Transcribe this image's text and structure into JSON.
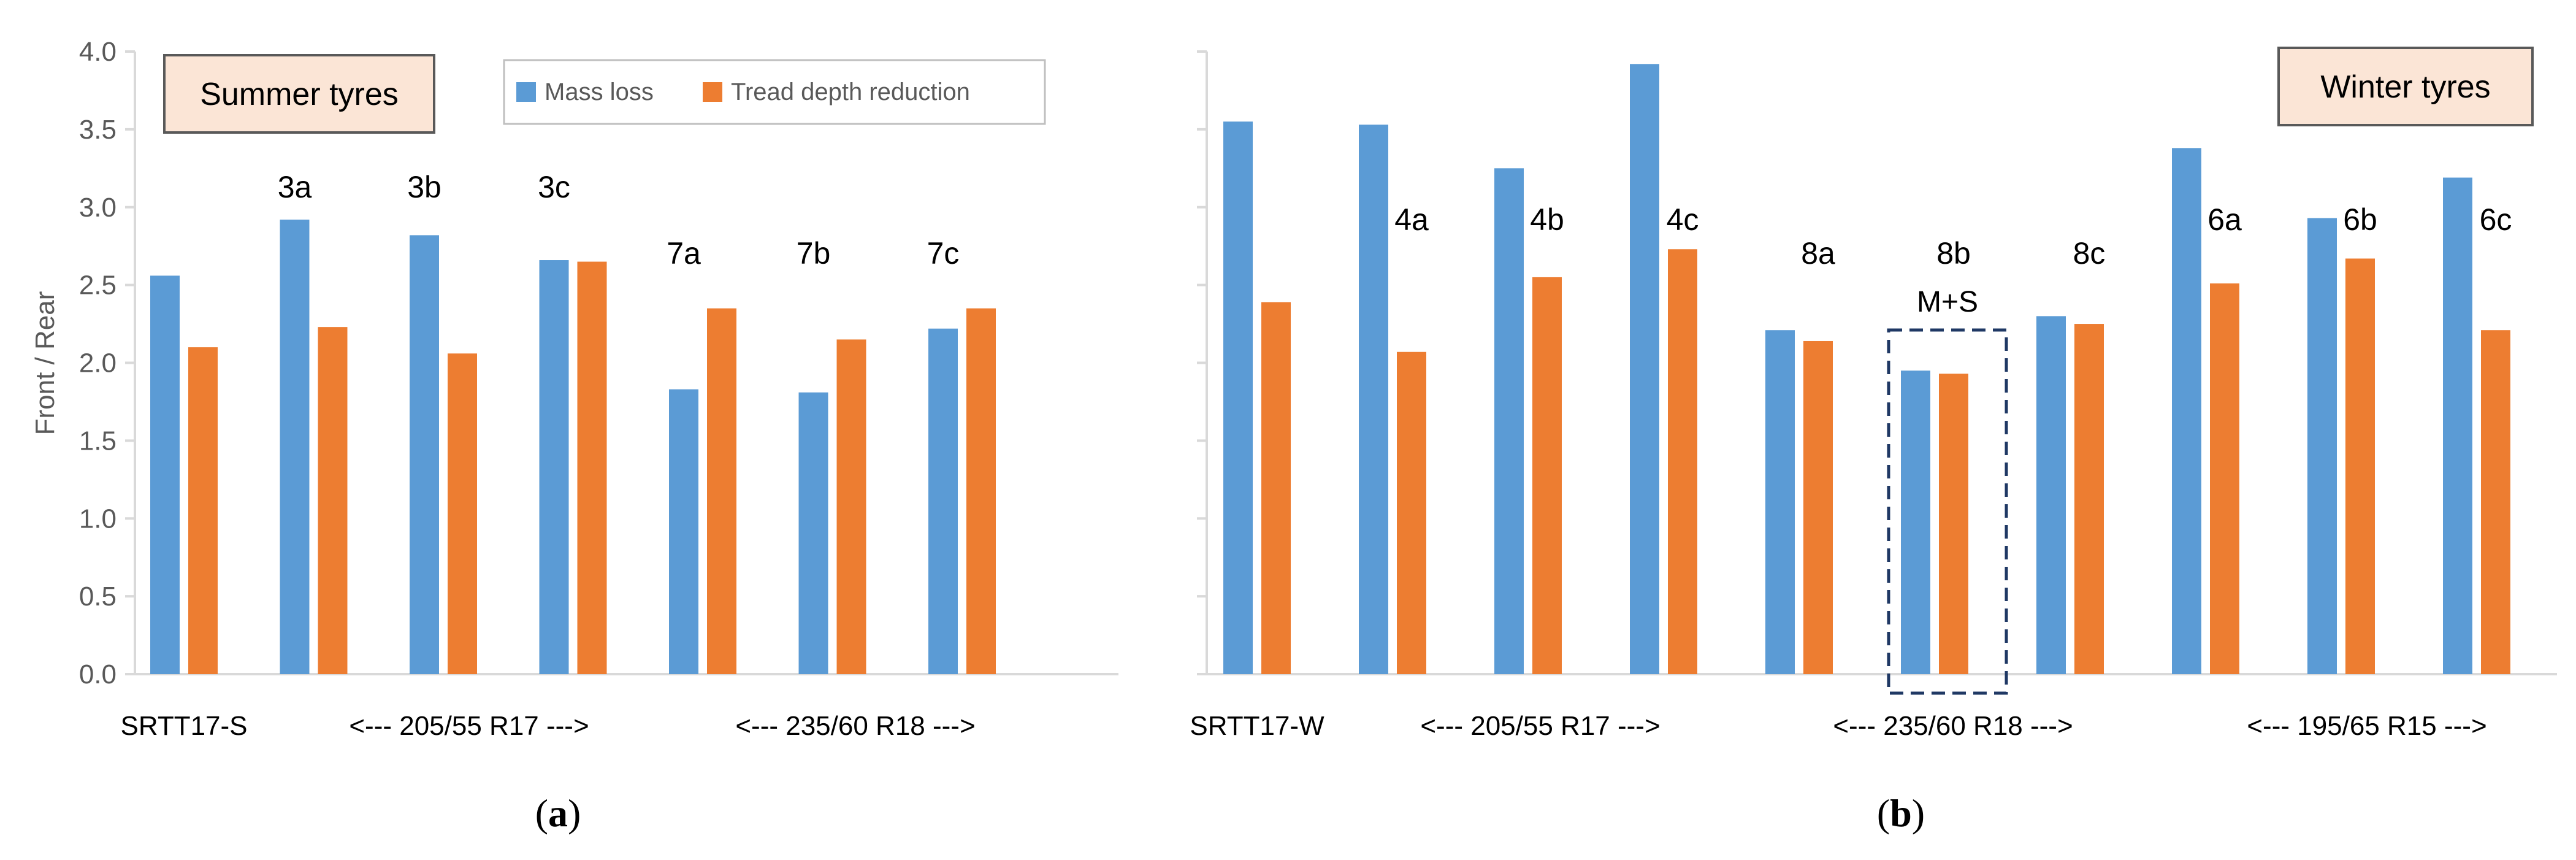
{
  "colors": {
    "mass_loss": "#5b9bd5",
    "tread_depth": "#ed7d31",
    "axis": "#d9d9d9",
    "text": "#595959",
    "label": "#000000",
    "callout_fill": "#fbe5d6",
    "callout_border": "#595959",
    "mplus_box": "#1f3864"
  },
  "chart_data": [
    {
      "type": "bar",
      "panel_label": "a",
      "callout": "Summer tyres",
      "ylabel": "Front / Rear",
      "ylim": [
        0,
        4
      ],
      "yticks": [
        "0.0",
        "0.5",
        "1.0",
        "1.5",
        "2.0",
        "2.5",
        "3.0",
        "3.5",
        "4.0"
      ],
      "legend": [
        "Mass loss",
        "Tread depth reduction"
      ],
      "categories": [
        "SRTT17-S",
        "3a",
        "3b",
        "3c",
        "7a",
        "7b",
        "7c"
      ],
      "group_labels": [
        "",
        "3a",
        "3b",
        "3c",
        "7a",
        "7b",
        "7c"
      ],
      "x_labels": [
        "SRTT17-S",
        "<--- 205/55 R17 --->",
        "<--- 235/60 R18 --->"
      ],
      "series": [
        {
          "name": "Mass loss",
          "values": [
            2.56,
            2.92,
            2.82,
            2.66,
            1.83,
            1.81,
            2.22
          ]
        },
        {
          "name": "Tread depth reduction",
          "values": [
            2.1,
            2.23,
            2.06,
            2.65,
            2.35,
            2.15,
            2.35
          ]
        }
      ]
    },
    {
      "type": "bar",
      "panel_label": "b",
      "callout": "Winter tyres",
      "ylim": [
        0,
        4
      ],
      "categories": [
        "SRTT17-W",
        "4a",
        "4b",
        "4c",
        "8a",
        "8b",
        "8c",
        "6a",
        "6b",
        "6c"
      ],
      "group_labels": [
        "",
        "4a",
        "4b",
        "4c",
        "8a",
        "8b",
        "8c",
        "6a",
        "6b",
        "6c"
      ],
      "x_labels": [
        "SRTT17-W",
        "<--- 205/55 R17 --->",
        "<--- 235/60 R18 --->",
        "<--- 195/65 R15 --->"
      ],
      "annotation": "M+S",
      "series": [
        {
          "name": "Mass loss",
          "values": [
            3.55,
            3.53,
            3.25,
            3.92,
            2.21,
            1.95,
            2.3,
            3.38,
            2.93,
            3.19
          ]
        },
        {
          "name": "Tread depth reduction",
          "values": [
            2.39,
            2.07,
            2.55,
            2.73,
            2.14,
            1.93,
            2.25,
            2.51,
            2.67,
            2.21
          ]
        }
      ]
    }
  ]
}
